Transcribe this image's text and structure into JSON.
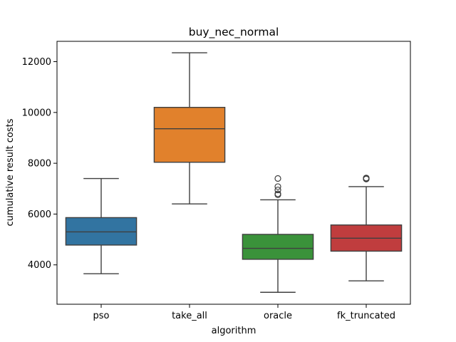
{
  "chart_data": {
    "type": "box",
    "title": "buy_nec_normal",
    "xlabel": "algorithm",
    "ylabel": "cumulative result costs",
    "ylim": [
      2450,
      12800
    ],
    "yticks": [
      4000,
      6000,
      8000,
      10000,
      12000
    ],
    "yticklabels": [
      "4000",
      "6000",
      "8000",
      "10000",
      "12000"
    ],
    "grid": false,
    "categories": [
      "pso",
      "take_all",
      "oracle",
      "fk_truncated"
    ],
    "colors": [
      "#3274a1",
      "#e1812c",
      "#3a923a",
      "#c03d3e"
    ],
    "boxes": [
      {
        "category": "pso",
        "whisker_low": 3650,
        "q1": 4780,
        "median": 5300,
        "q3": 5860,
        "whisker_high": 7400,
        "outliers": []
      },
      {
        "category": "take_all",
        "whisker_low": 6400,
        "q1": 8040,
        "median": 9360,
        "q3": 10200,
        "whisker_high": 12350,
        "outliers": []
      },
      {
        "category": "oracle",
        "whisker_low": 2920,
        "q1": 4220,
        "median": 4650,
        "q3": 5200,
        "whisker_high": 6560,
        "outliers": [
          6760,
          6800,
          6950,
          7080,
          7400
        ]
      },
      {
        "category": "fk_truncated",
        "whisker_low": 3370,
        "q1": 4540,
        "median": 5050,
        "q3": 5570,
        "whisker_high": 7080,
        "outliers": [
          7380,
          7400,
          7420
        ]
      }
    ]
  }
}
